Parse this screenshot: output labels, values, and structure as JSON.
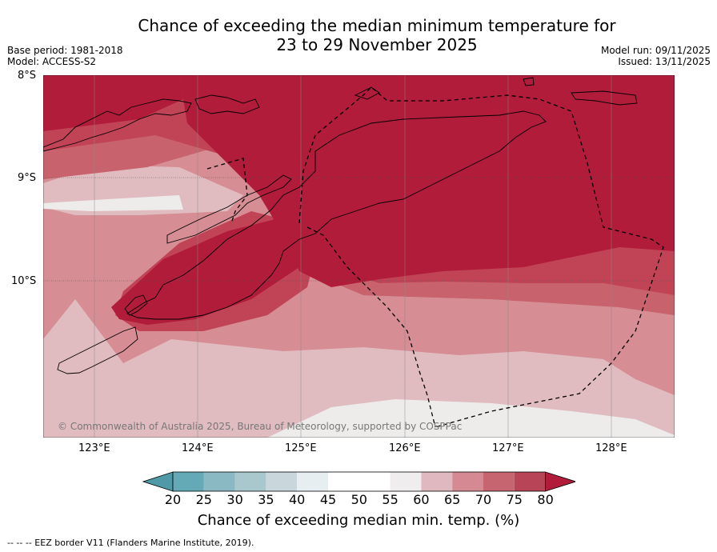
{
  "title": {
    "line1": "Chance of exceeding the median minimum temperature for",
    "line2": "23 to 29 November 2025"
  },
  "meta": {
    "base_period": "Base period: 1981-2018",
    "model": "Model: ACCESS-S2",
    "model_run": "Model run: 09/11/2025",
    "issued": "Issued: 13/11/2025"
  },
  "axes": {
    "lat_ticks": [
      "8°S",
      "9°S",
      "10°S"
    ],
    "lon_ticks": [
      "123°E",
      "124°E",
      "125°E",
      "126°E",
      "127°E",
      "128°E"
    ]
  },
  "colorbar": {
    "ticks": [
      "20",
      "25",
      "30",
      "35",
      "40",
      "45",
      "50",
      "55",
      "60",
      "65",
      "70",
      "75",
      "80"
    ],
    "label": "Chance of exceeding median min. temp. (%)",
    "colors": [
      "#63a9b6",
      "#8ab8c3",
      "#a9c8ce",
      "#c9d6dc",
      "#e6eef2",
      "#ffffff",
      "#ffffff",
      "#efeded",
      "#e0b8bf",
      "#d58a93",
      "#c6646f",
      "#b84457"
    ],
    "under_color": "#4f9aa6",
    "over_color": "#b01c3a"
  },
  "map_colors": {
    "c80": "#b01c3a",
    "c75": "#c14456",
    "c70": "#c8636e",
    "c65": "#d68d94",
    "c60": "#e0bcc0",
    "c55": "#eeeceb"
  },
  "copyright": "© Commonwealth of Australia 2025, Bureau of Meteorology, supported by COSPPac",
  "footer": "-- -- -- EEZ border V11 (Flanders Marine Institute, 2019)."
}
